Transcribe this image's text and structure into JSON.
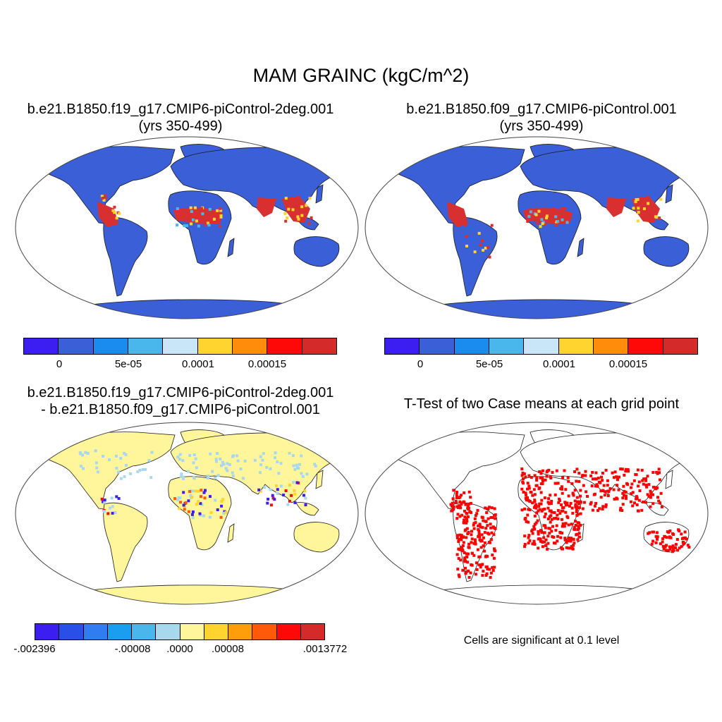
{
  "title": "MAM GRAINC (kgC/m^2)",
  "panels": [
    {
      "id": "p1",
      "title_line1": "b.e21.B1850.f19_g17.CMIP6-piControl-2deg.001",
      "title_line2": "(yrs 350-499)",
      "type": "field"
    },
    {
      "id": "p2",
      "title_line1": "b.e21.B1850.f09_g17.CMIP6-piControl.001",
      "title_line2": "(yrs 350-499)",
      "type": "field"
    },
    {
      "id": "p3",
      "title_line1": "b.e21.B1850.f19_g17.CMIP6-piControl-2deg.001",
      "title_line2": "- b.e21.B1850.f09_g17.CMIP6-piControl.001",
      "type": "difference"
    },
    {
      "id": "p4",
      "title_line1": "T-Test of two Case means at each grid point",
      "type": "significance"
    }
  ],
  "colors": {
    "field_land": "#3a5fd6",
    "tropics_high": "#d83030",
    "diff_land": "#fff59a",
    "diff_neg": "#a9d8ee",
    "significant": "#ff0000",
    "coast": "#1a1a1a"
  },
  "colorbar_field": {
    "colors": [
      "#3c1ef0",
      "#3a5fd6",
      "#1a8cf0",
      "#4ab7ec",
      "#c8e6f8",
      "#ffd42e",
      "#ff8c0a",
      "#ff0808",
      "#d42a2a"
    ],
    "labels": [
      "0",
      "5e-05",
      "0.0001",
      "0.00015"
    ]
  },
  "colorbar_diff": {
    "colors": [
      "#3c1ef0",
      "#2a4fe8",
      "#2f7df0",
      "#1a9ef0",
      "#4ab7ec",
      "#a8d8ee",
      "#fff59a",
      "#ffd42e",
      "#ff9e0a",
      "#ff5a0a",
      "#ff0808",
      "#d42a2a"
    ],
    "labels": [
      "-.002396",
      "-.00008",
      ".0000",
      ".00008",
      ".0013772"
    ]
  },
  "significance_note": "Cells are significant at 0.1 level"
}
